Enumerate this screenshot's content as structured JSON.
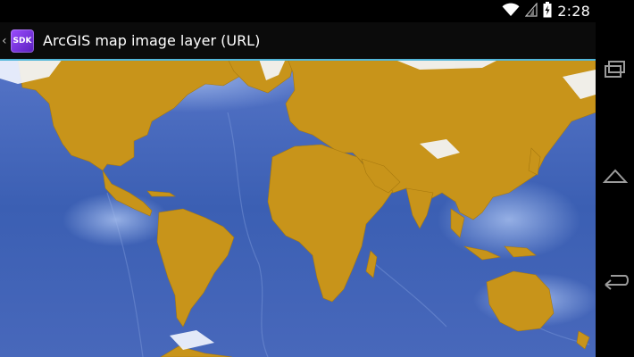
{
  "status_bar": {
    "time": "2:28",
    "icons": [
      "wifi-icon",
      "signal-icon",
      "battery-charging-icon"
    ]
  },
  "action_bar": {
    "up_icon": "chevron-left-icon",
    "app_icon_text": "SDK",
    "title": "ArcGIS map image layer (URL)"
  },
  "map": {
    "ocean_color": "#3f63b7",
    "land_color": "#c8941a",
    "ice_color": "#f4f7ff"
  },
  "nav_bar": {
    "buttons": [
      "recent-apps-icon",
      "home-icon",
      "back-icon"
    ]
  }
}
